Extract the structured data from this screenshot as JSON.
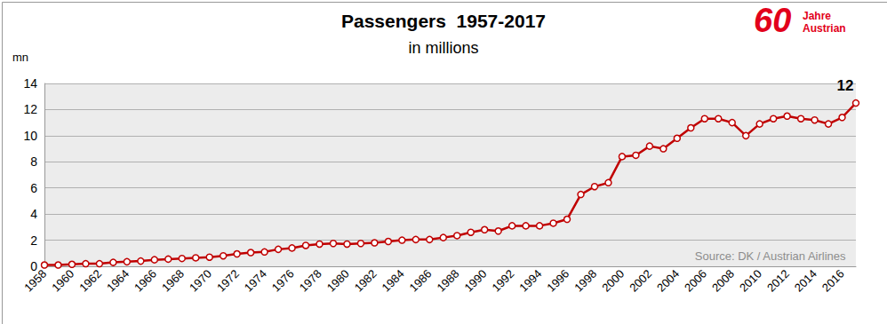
{
  "chart_data": {
    "type": "line",
    "title": "Passengers  1957-2017",
    "subtitle": "in millions",
    "y_label": "mn",
    "source": "Source: DK / Austrian Airlines",
    "logo": {
      "number": "60",
      "text": [
        "Jahre",
        "Austrian"
      ]
    },
    "annotations": [
      "12"
    ],
    "categories": [
      "1958",
      null,
      "1960",
      null,
      "1962",
      null,
      "1964",
      null,
      "1966",
      null,
      "1968",
      null,
      "1970",
      null,
      "1972",
      null,
      "1974",
      null,
      "1976",
      null,
      "1978",
      null,
      "1980",
      null,
      "1982",
      null,
      "1984",
      null,
      "1986",
      null,
      "1988",
      null,
      "1990",
      null,
      "1992",
      null,
      "1994",
      null,
      "1996",
      null,
      "1998",
      null,
      "2000",
      null,
      "2002",
      null,
      "2004",
      null,
      "2006",
      null,
      "2008",
      null,
      "2010",
      null,
      "2012",
      null,
      "2014",
      null,
      "2016",
      null
    ],
    "values": [
      0.1,
      0.1,
      0.15,
      0.2,
      0.2,
      0.3,
      0.35,
      0.4,
      0.5,
      0.55,
      0.6,
      0.65,
      0.7,
      0.8,
      0.95,
      1.05,
      1.1,
      1.3,
      1.4,
      1.6,
      1.7,
      1.75,
      1.7,
      1.75,
      1.8,
      1.9,
      2.0,
      2.05,
      2.05,
      2.2,
      2.35,
      2.6,
      2.8,
      2.7,
      3.1,
      3.1,
      3.1,
      3.3,
      3.6,
      5.5,
      6.1,
      6.4,
      8.4,
      8.5,
      9.2,
      9.0,
      9.8,
      10.6,
      11.3,
      11.3,
      11.0,
      10.0,
      10.9,
      11.3,
      11.5,
      11.3,
      11.2,
      10.9,
      11.4,
      12.5
    ],
    "color": "#c00000",
    "marker": "circle",
    "ylim": [
      0,
      14
    ],
    "yticks": [
      0,
      2,
      4,
      6,
      8,
      10,
      12,
      14
    ],
    "grid": true
  }
}
